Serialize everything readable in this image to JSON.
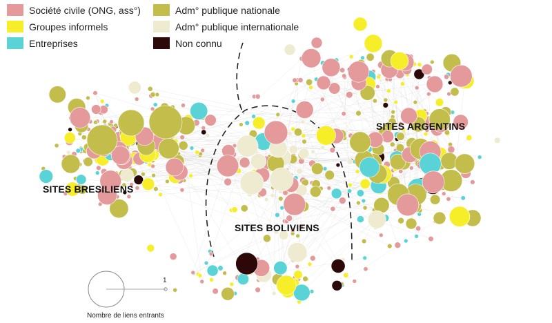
{
  "legend": {
    "items": [
      {
        "key": "civil",
        "label": "Société civile (ONG, ass°)",
        "color": "#e4999b"
      },
      {
        "key": "informal",
        "label": "Groupes informels",
        "color": "#f5ee28"
      },
      {
        "key": "business",
        "label": "Entreprises",
        "color": "#5ad3d6"
      },
      {
        "key": "national",
        "label": "Adm° publique nationale",
        "color": "#c3bd4c"
      },
      {
        "key": "international",
        "label": "Adm° publique internationale",
        "color": "#eeebd1"
      },
      {
        "key": "unknown",
        "label": "Non connu",
        "color": "#2c0808"
      }
    ]
  },
  "regions": {
    "brazil": "SITES BRESILIENS",
    "bolivia": "SITES BOLIVIENS",
    "argentina": "SITES ARGENTINS"
  },
  "scale": {
    "value_label": "1",
    "caption": "Nombre de liens entrants"
  }
}
